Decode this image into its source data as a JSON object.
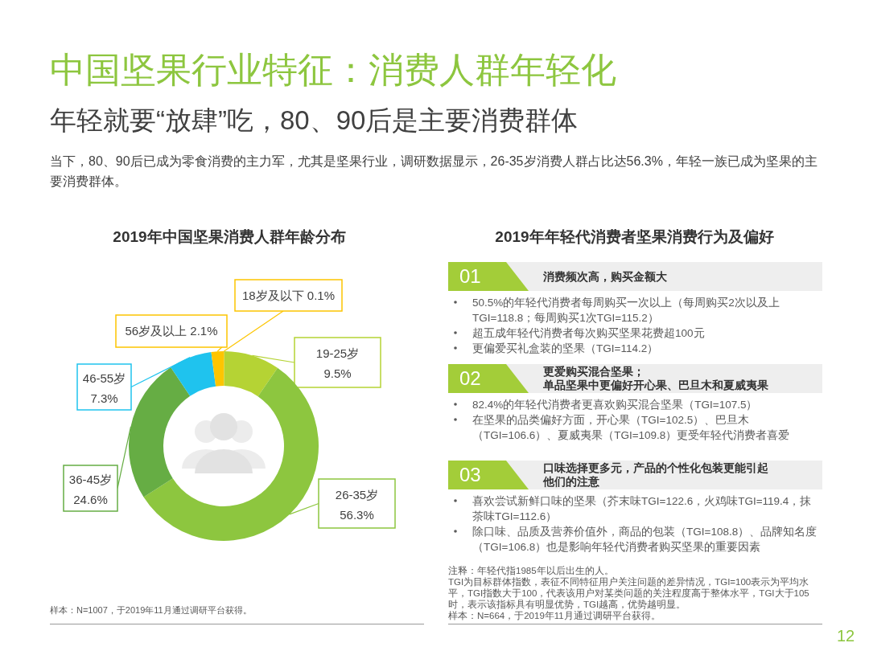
{
  "chart_data": [
    {
      "type": "other",
      "title": "中国坚果行业特征：消费人群年轻化",
      "subtitle": "年轻就要“放肆”吃，80、90后是主要消费群体",
      "annotations": [
        "当下，80、90后已成为零食消费的主力军，尤其是坚果行业，调研数据显示，26-35岁消费人群占比达56.3%，年轻一族已成为坚果的主要消费群体。",
        "12"
      ]
    },
    {
      "type": "donut",
      "title": "2019年中国坚果消费人群年龄分布",
      "categories": [
        "18岁及以下",
        "19-25岁",
        "26-35岁",
        "36-45岁",
        "46-55岁",
        "56岁及以上"
      ],
      "values": [
        0.1,
        9.5,
        56.3,
        24.6,
        7.3,
        2.1
      ],
      "colors": [
        "#fdc500",
        "#b5d334",
        "#8dc63f",
        "#66ad44",
        "#1fc3ee",
        "#fdc500"
      ],
      "value_labels": [
        "0.1%",
        "9.5%",
        "56.3%",
        "24.6%",
        "7.3%",
        "2.1%"
      ],
      "annotations": [
        "样本：N=1007，于2019年11月通过调研平台获得。"
      ]
    },
    {
      "type": "other",
      "title": "2019年年轻代消费者坚果消费行为及偏好",
      "categories": [
        "01",
        "02",
        "03"
      ],
      "y_categories": [
        "消费频次高，购买金额大",
        "更爱购买混合坚果；单品坚果中更偏好开心果、巴旦木和夏威夷果",
        "口味选择更多元，产品的个性化包装更能引起他们的注意"
      ],
      "cell_labels": [
        [
          "50.5%的年轻代消费者每周购买一次以上（每周购买2次以及上TGI=118.8；每周购买1次TGI=115.2）",
          "超五成年轻代消费者每次购买坚果花费超100元",
          "更偏爱买礼盒装的坚果（TGI=114.2）"
        ],
        [
          "82.4%的年轻代消费者更喜欢购买混合坚果（TGI=107.5）",
          "在坚果的品类偏好方面，开心果（TGI=102.5）、巴旦木（TGI=106.6）、夏威夷果（TGI=109.8）更受年轻代消费者喜爱"
        ],
        [
          "喜欢尝试新鲜口味的坚果（芥末味TGI=122.6，火鸡味TGI=119.4，抹茶味TGI=112.6）",
          "除口味、品质及营养价值外，商品的包装（TGI=108.8）、品牌知名度（TGI=106.8）也是影响年轻代消费者购买坚果的重要因素"
        ]
      ],
      "annotations": [
        "注释：年轻代指1985年以后出生的人。",
        "TGI为目标群体指数，表征不同特征用户关注问题的差异情况，TGI=100表示为平均水平，TGI指数大于100，代表该用户对某类问题的关注程度高于整体水平，TGI大于105时，表示该指标具有明显优势，TGI越高，优势越明显。",
        "样本：N=664，于2019年11月通过调研平台获得。"
      ]
    }
  ]
}
